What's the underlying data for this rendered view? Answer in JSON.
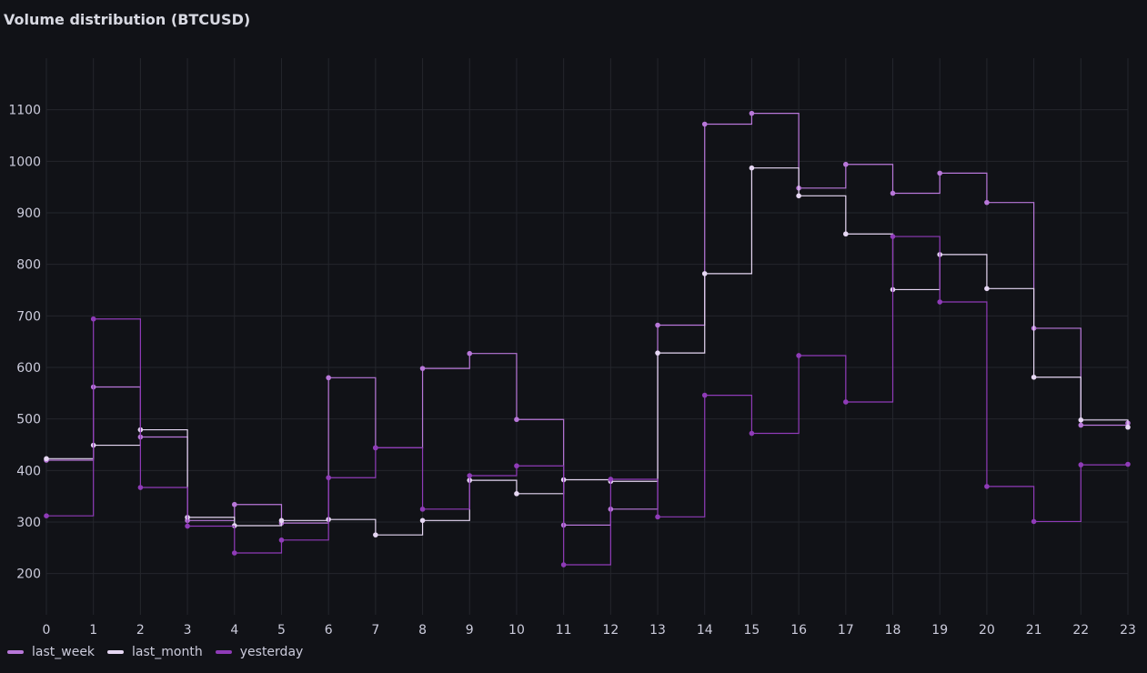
{
  "panel": {
    "title": "Volume distribution (BTCUSD)"
  },
  "chart_data": {
    "type": "line",
    "style": "step",
    "title": "Volume distribution (BTCUSD)",
    "xlabel": "",
    "ylabel": "",
    "x": [
      0,
      1,
      2,
      3,
      4,
      5,
      6,
      7,
      8,
      9,
      10,
      11,
      12,
      13,
      14,
      15,
      16,
      17,
      18,
      19,
      20,
      21,
      22,
      23
    ],
    "xlim": [
      0,
      23
    ],
    "ylim": [
      120,
      1200
    ],
    "x_ticks": [
      0,
      1,
      2,
      3,
      4,
      5,
      6,
      7,
      8,
      9,
      10,
      11,
      12,
      13,
      14,
      15,
      16,
      17,
      18,
      19,
      20,
      21,
      22,
      23
    ],
    "y_ticks": [
      200,
      300,
      400,
      500,
      600,
      700,
      800,
      900,
      1000,
      1100
    ],
    "grid": true,
    "legend_position": "bottom-left",
    "series": [
      {
        "name": "last_week",
        "color": "#b877d9",
        "values": [
          420,
          562,
          465,
          303,
          334,
          298,
          580,
          444,
          598,
          627,
          499,
          294,
          325,
          682,
          1072,
          1093,
          948,
          994,
          938,
          977,
          920,
          676,
          488,
          492
        ]
      },
      {
        "name": "last_month",
        "color": "#e6d7f3",
        "values": [
          423,
          449,
          479,
          309,
          293,
          303,
          305,
          275,
          303,
          381,
          355,
          382,
          379,
          628,
          782,
          987,
          933,
          859,
          751,
          819,
          753,
          581,
          498,
          484
        ]
      },
      {
        "name": "yesterday",
        "color": "#8f3bb8",
        "values": [
          312,
          694,
          367,
          292,
          240,
          265,
          386,
          444,
          325,
          390,
          409,
          217,
          383,
          310,
          546,
          472,
          623,
          533,
          854,
          727,
          369,
          301,
          411,
          412
        ]
      }
    ]
  }
}
